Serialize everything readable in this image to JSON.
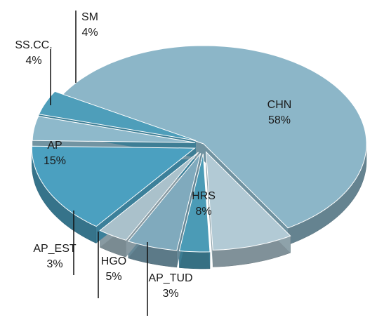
{
  "chart_data": {
    "type": "pie",
    "categories": [
      "CHN",
      "HRS",
      "AP_TUD",
      "HGO",
      "AP_EST",
      "AP",
      "SS.CC.",
      "SM"
    ],
    "values": [
      58,
      8,
      3,
      5,
      3,
      15,
      4,
      4
    ],
    "value_labels": [
      "58%",
      "8%",
      "3%",
      "5%",
      "3%",
      "15%",
      "4%",
      "4%"
    ],
    "colors": [
      "#8cb6c8",
      "#b2cad5",
      "#4b9bb6",
      "#80aabd",
      "#aac1cb",
      "#4ba0c0",
      "#8eb9cb",
      "#4e9eba"
    ]
  }
}
